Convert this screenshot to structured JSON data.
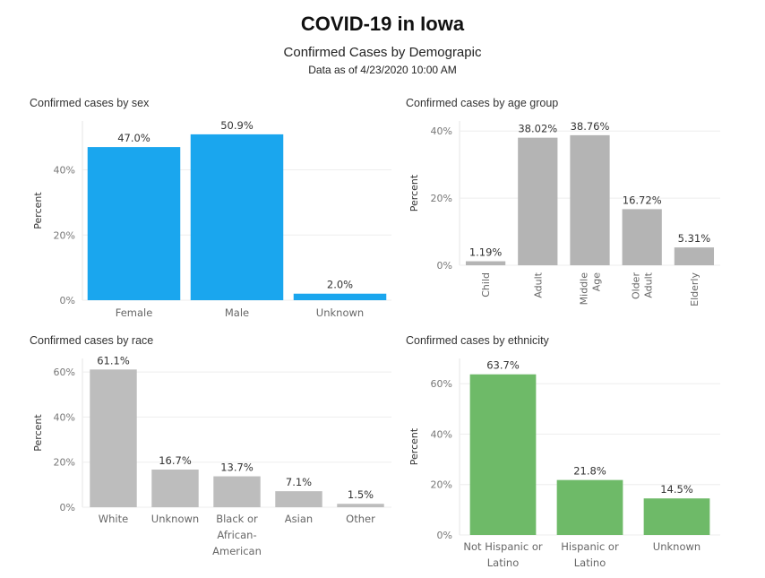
{
  "header": {
    "title": "COVID-19 in Iowa",
    "subtitle": "Confirmed Cases by Demograpic",
    "as_of": "Data as of 4/23/2020 10:00 AM"
  },
  "chart_data": [
    {
      "type": "bar",
      "title": "Confirmed cases by sex",
      "ylabel": "Percent",
      "categories": [
        [
          "Female"
        ],
        [
          "Male"
        ],
        [
          "Unknown"
        ]
      ],
      "values": [
        47.0,
        50.9,
        2.0
      ],
      "labels": [
        "47.0%",
        "50.9%",
        "2.0%"
      ],
      "ylim": [
        0,
        55
      ],
      "yticks": [
        0,
        20,
        40
      ],
      "ytick_labels": [
        "0%",
        "20%",
        "40%"
      ],
      "color": "#1aa6ee",
      "rotated_labels": false
    },
    {
      "type": "bar",
      "title": "Confirmed cases by age group",
      "ylabel": "Percent",
      "categories": [
        [
          "Child"
        ],
        [
          "Adult"
        ],
        [
          "Middle",
          "Age"
        ],
        [
          "Older",
          "Adult"
        ],
        [
          "Elderly"
        ]
      ],
      "values": [
        1.19,
        38.02,
        38.76,
        16.72,
        5.31
      ],
      "labels": [
        "1.19%",
        "38.02%",
        "38.76%",
        "16.72%",
        "5.31%"
      ],
      "ylim": [
        0,
        43
      ],
      "yticks": [
        0,
        20,
        40
      ],
      "ytick_labels": [
        "0%",
        "20%",
        "40%"
      ],
      "color": "#b4b4b4",
      "rotated_labels": true
    },
    {
      "type": "bar",
      "title": "Confirmed cases by race",
      "ylabel": "Percent",
      "categories": [
        [
          "White"
        ],
        [
          "Unknown"
        ],
        [
          "Black or",
          "African-",
          "American"
        ],
        [
          "Asian"
        ],
        [
          "Other"
        ]
      ],
      "values": [
        61.1,
        16.7,
        13.7,
        7.1,
        1.5
      ],
      "labels": [
        "61.1%",
        "16.7%",
        "13.7%",
        "7.1%",
        "1.5%"
      ],
      "ylim": [
        0,
        66
      ],
      "yticks": [
        0,
        20,
        40,
        60
      ],
      "ytick_labels": [
        "0%",
        "20%",
        "40%",
        "60%"
      ],
      "color": "#bdbdbd",
      "rotated_labels": false
    },
    {
      "type": "bar",
      "title": "Confirmed cases by ethnicity",
      "ylabel": "Percent",
      "categories": [
        [
          "Not Hispanic or",
          "Latino"
        ],
        [
          "Hispanic or",
          "Latino"
        ],
        [
          "Unknown"
        ]
      ],
      "values": [
        63.7,
        21.8,
        14.5
      ],
      "labels": [
        "63.7%",
        "21.8%",
        "14.5%"
      ],
      "ylim": [
        0,
        70
      ],
      "yticks": [
        0,
        20,
        40,
        60
      ],
      "ytick_labels": [
        "0%",
        "20%",
        "40%",
        "60%"
      ],
      "color": "#6eba68",
      "rotated_labels": false
    }
  ]
}
